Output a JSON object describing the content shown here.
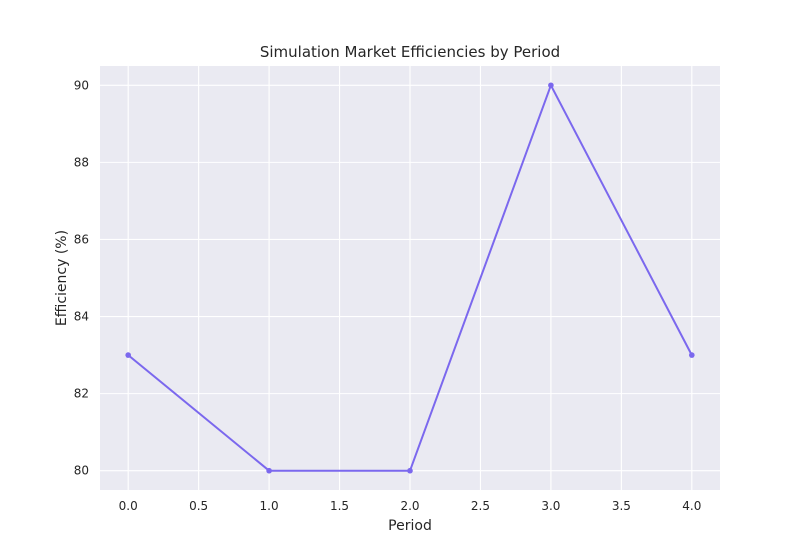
{
  "chart_data": {
    "type": "line",
    "title": "Simulation Market Efficiencies by Period",
    "xlabel": "Period",
    "ylabel": "Efficiency (%)",
    "x": [
      0,
      1,
      2,
      3,
      4
    ],
    "series": [
      {
        "values": [
          83,
          80,
          80,
          90,
          83
        ]
      }
    ],
    "xlim": [
      -0.2,
      4.2
    ],
    "ylim": [
      79.5,
      90.5
    ],
    "xticks": [
      0.0,
      0.5,
      1.0,
      1.5,
      2.0,
      2.5,
      3.0,
      3.5,
      4.0
    ],
    "xtick_labels": [
      "0.0",
      "0.5",
      "1.0",
      "1.5",
      "2.0",
      "2.5",
      "3.0",
      "3.5",
      "4.0"
    ],
    "yticks": [
      80,
      82,
      84,
      86,
      88,
      90
    ],
    "ytick_labels": [
      "80",
      "82",
      "84",
      "86",
      "88",
      "90"
    ],
    "grid": true,
    "colors": {
      "plot_background": "#eaeaf2",
      "grid": "#ffffff",
      "line": "#7b68ee",
      "text": "#262626"
    }
  }
}
